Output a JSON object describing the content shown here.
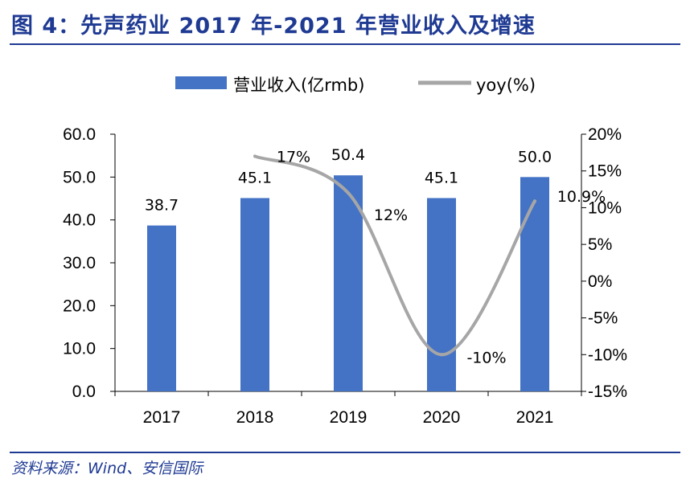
{
  "header": {
    "title": "图 4：先声药业 2017 年-2021 年营业收入及增速"
  },
  "footer": {
    "source": "资料来源：Wind、安信国际"
  },
  "chart_data": {
    "type": "bar",
    "categories": [
      "2017",
      "2018",
      "2019",
      "2020",
      "2021"
    ],
    "series": [
      {
        "name": "营业收入(亿rmb)",
        "type": "bar",
        "axis": "left",
        "color": "#4472c4",
        "values": [
          38.7,
          45.1,
          50.4,
          45.1,
          50.0
        ],
        "labels": [
          "38.7",
          "45.1",
          "50.4",
          "45.1",
          "50.0"
        ]
      },
      {
        "name": "yoy(%)",
        "type": "line",
        "axis": "right",
        "color": "#a6a6a6",
        "smooth": true,
        "values": [
          null,
          17,
          12,
          -10,
          10.9
        ],
        "labels": [
          "",
          "17%",
          "12%",
          "-10%",
          "10.9%"
        ]
      }
    ],
    "y_left": {
      "ylim": [
        0,
        60
      ],
      "ticks": [
        "0.0",
        "10.0",
        "20.0",
        "30.0",
        "40.0",
        "50.0",
        "60.0"
      ]
    },
    "y_right": {
      "ylim": [
        -15,
        20
      ],
      "ticks": [
        "-15%",
        "-10%",
        "-5%",
        "0%",
        "5%",
        "10%",
        "15%",
        "20%"
      ]
    },
    "legend_position": "top",
    "grid": false
  }
}
